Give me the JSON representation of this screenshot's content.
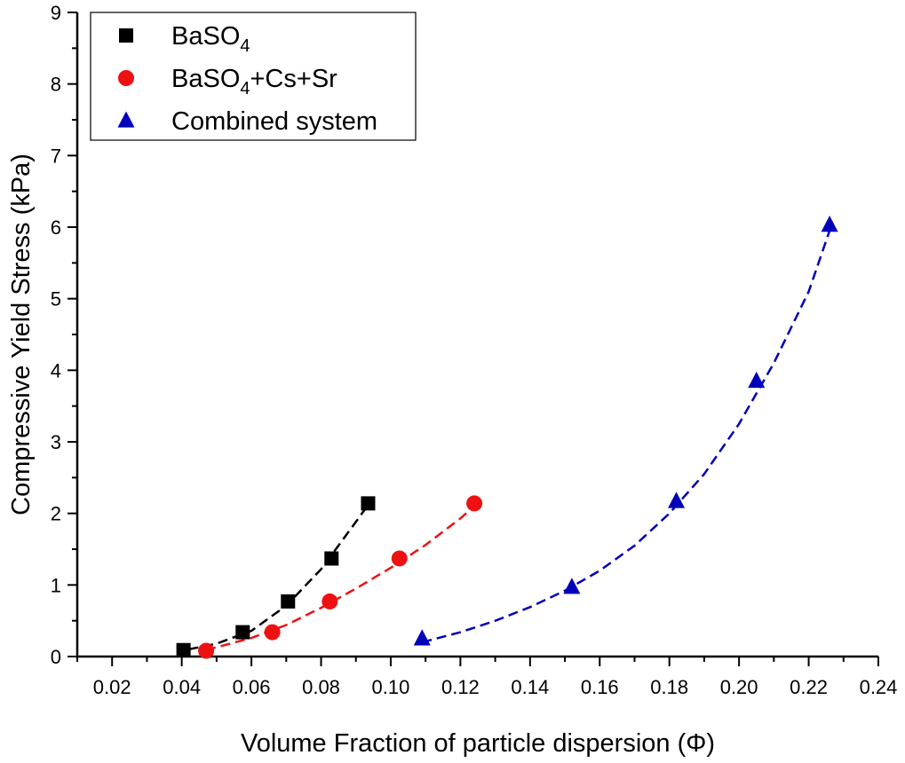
{
  "chart_data": {
    "type": "scatter",
    "xlabel": "Volume Fraction of particle dispersion (Φ)",
    "ylabel": "Compressive Yield Stress (kPa)",
    "xlim": [
      0.01,
      0.24
    ],
    "ylim": [
      0,
      9
    ],
    "x_major_ticks": [
      0.02,
      0.04,
      0.06,
      0.08,
      0.1,
      0.12,
      0.14,
      0.16,
      0.18,
      0.2,
      0.22,
      0.24
    ],
    "x_tick_labels": [
      "0.02",
      "0.04",
      "0.06",
      "0.08",
      "0.10",
      "0.12",
      "0.14",
      "0.16",
      "0.18",
      "0.20",
      "0.22",
      "0.24"
    ],
    "y_major_ticks": [
      0,
      1,
      2,
      3,
      4,
      5,
      6,
      7,
      8,
      9
    ],
    "y_tick_labels": [
      "0",
      "1",
      "2",
      "3",
      "4",
      "5",
      "6",
      "7",
      "8",
      "9"
    ],
    "grid": false,
    "legend_position": "top-left",
    "series": [
      {
        "name": "BaSO4",
        "legend_main": "BaSO",
        "legend_sub": "4",
        "legend_tail": "",
        "marker": "square",
        "color": "#000000",
        "x": [
          0.0405,
          0.0575,
          0.0705,
          0.083,
          0.0935
        ],
        "y": [
          0.09,
          0.34,
          0.77,
          1.37,
          2.14
        ],
        "fit": {
          "x": [
            0.042,
            0.05,
            0.06,
            0.07,
            0.08,
            0.09,
            0.0935
          ],
          "y": [
            0.1,
            0.18,
            0.36,
            0.71,
            1.22,
            1.88,
            2.12
          ]
        }
      },
      {
        "name": "BaSO4+Cs+Sr",
        "legend_main": "BaSO",
        "legend_sub": "4",
        "legend_tail": "+Cs+Sr",
        "marker": "circle",
        "color": "#ee1111",
        "x": [
          0.047,
          0.066,
          0.0825,
          0.1025,
          0.124
        ],
        "y": [
          0.08,
          0.34,
          0.77,
          1.37,
          2.14
        ],
        "fit": {
          "x": [
            0.047,
            0.06,
            0.07,
            0.08,
            0.09,
            0.1,
            0.11,
            0.12,
            0.124
          ],
          "y": [
            0.09,
            0.26,
            0.44,
            0.68,
            0.95,
            1.24,
            1.56,
            1.93,
            2.1
          ]
        }
      },
      {
        "name": "Combined system",
        "legend_main": "Combined system",
        "legend_sub": "",
        "legend_tail": "",
        "marker": "triangle",
        "color": "#0000bb",
        "x": [
          0.109,
          0.152,
          0.182,
          0.205,
          0.226
        ],
        "y": [
          0.25,
          0.97,
          2.17,
          3.85,
          6.03
        ],
        "fit": {
          "x": [
            0.109,
            0.12,
            0.13,
            0.14,
            0.15,
            0.16,
            0.17,
            0.18,
            0.19,
            0.2,
            0.21,
            0.22,
            0.226
          ],
          "y": [
            0.2,
            0.34,
            0.5,
            0.69,
            0.92,
            1.2,
            1.55,
            2.0,
            2.55,
            3.25,
            4.1,
            5.1,
            5.95
          ]
        }
      }
    ]
  }
}
